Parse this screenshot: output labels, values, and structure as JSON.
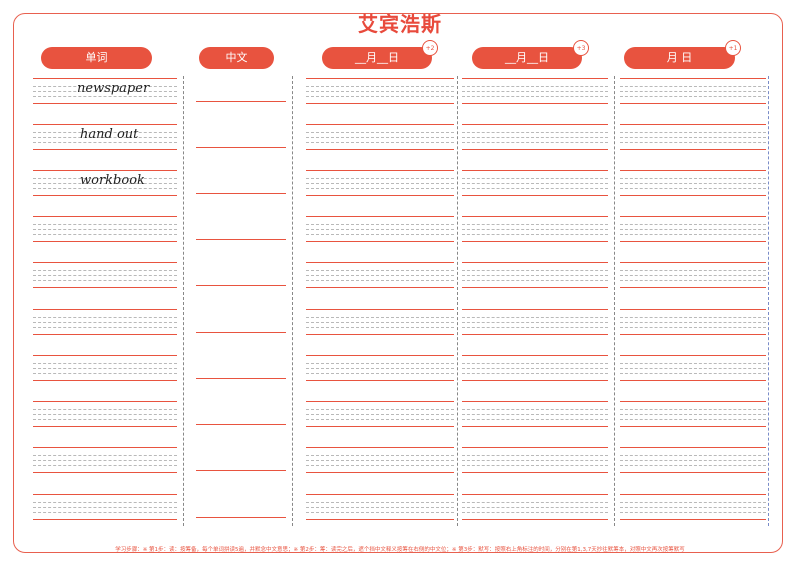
{
  "title": "艾宾浩斯",
  "columns": [
    {
      "label": "单词"
    },
    {
      "label": "中文"
    },
    {
      "label": "__月__日",
      "badge": "+2"
    },
    {
      "label": "__月__日",
      "badge": "+3"
    },
    {
      "label": "月  日",
      "badge": "+1"
    }
  ],
  "words": [
    "newspaper",
    "hand out",
    "workbook"
  ],
  "footer": "学习步骤：※ 第1步：读：按筹备，每个单词拼读5遍，并默念中文意思；※ 第2步：筹：读完之后，遮个挡中文释义按筹在右侧的中文位；※ 第3步：默写：按照右上角标注的时间，分别在第1,3,7天抄往默筹本，对照中文再次按筹默写",
  "colors": {
    "accent": "#e8533f",
    "title": "#e84a3c"
  }
}
